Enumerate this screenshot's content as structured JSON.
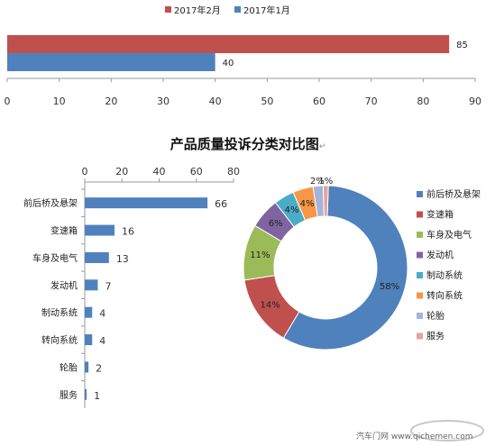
{
  "top_chart": {
    "legend": [
      "2017年2月",
      "2017年1月"
    ],
    "series": [
      {
        "name": "2017年2月",
        "value": 85,
        "color": "#c0504d"
      },
      {
        "name": "2017年1月",
        "value": 40,
        "color": "#4f81bd"
      }
    ],
    "x_ticks": [
      "0",
      "10",
      "20",
      "30",
      "40",
      "50",
      "60",
      "70",
      "80",
      "90"
    ],
    "xlim": [
      0,
      90
    ]
  },
  "title": "产品质量投诉分类对比图",
  "title_mark": "↵",
  "chart_data": [
    {
      "type": "bar",
      "orientation": "horizontal",
      "categories": [
        "前后桥及悬架",
        "变速箱",
        "车身及电气",
        "发动机",
        "制动系统",
        "转向系统",
        "轮胎",
        "服务"
      ],
      "values": [
        66,
        16,
        13,
        7,
        4,
        4,
        2,
        1
      ],
      "x_ticks": [
        "0",
        "20",
        "40",
        "60",
        "80"
      ],
      "xlim": [
        0,
        80
      ],
      "color": "#4f81bd"
    },
    {
      "type": "pie",
      "donut": true,
      "categories": [
        "前后桥及悬架",
        "变速箱",
        "车身及电气",
        "发动机",
        "制动系统",
        "转向系统",
        "轮胎",
        "服务"
      ],
      "values": [
        58,
        14,
        11,
        6,
        4,
        4,
        2,
        1
      ],
      "labels": [
        "58%",
        "14%",
        "11%",
        "6%",
        "4%",
        "4%",
        "2%",
        "1%"
      ],
      "colors": [
        "#4f81bd",
        "#c0504d",
        "#9bbb59",
        "#8064a2",
        "#4bacc6",
        "#f79646",
        "#a5b4d8",
        "#e6a3a0"
      ],
      "legend_position": "right"
    }
  ],
  "watermark": "汽车门网 www.qichemen.com"
}
